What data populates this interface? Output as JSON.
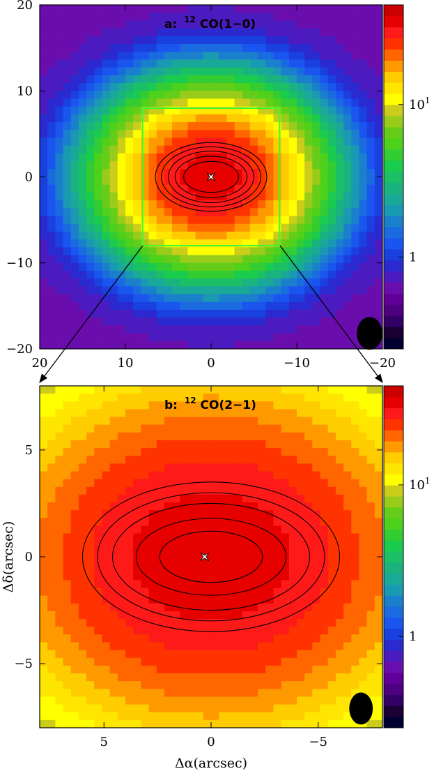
{
  "figure": {
    "ylabel": "Δδ(arcsec)",
    "xlabel": "Δα(arcsec)"
  },
  "chart_data": [
    {
      "type": "heatmap",
      "panel": "a",
      "title_prefix": "a:",
      "title_sup": "12",
      "title_main": "CO(1−0)",
      "xticks": [
        20,
        10,
        0,
        -10,
        -20
      ],
      "yticks": [
        20,
        10,
        0,
        -10,
        -20
      ],
      "xticklabels": [
        "20",
        "10",
        "0",
        "−10",
        "−20"
      ],
      "yticklabels": [
        "20",
        "10",
        "0",
        "−10",
        "−20"
      ],
      "xlim": [
        20,
        -20
      ],
      "ylim": [
        -20,
        20
      ],
      "peak_value": 40,
      "background_value": 0.6,
      "core_size": 6,
      "zoom_box": {
        "x": [
          8,
          -8
        ],
        "y": [
          -8,
          8
        ],
        "color": "#33ff33"
      },
      "contours": [
        {
          "level": 1,
          "rx": 6.5,
          "ry": 4.0
        },
        {
          "level": 2,
          "rx": 5.8,
          "ry": 3.5
        },
        {
          "level": 3,
          "rx": 5.0,
          "ry": 3.0
        },
        {
          "level": 4,
          "rx": 4.2,
          "ry": 2.4
        },
        {
          "level": 5,
          "rx": 3.2,
          "ry": 1.8
        }
      ],
      "star_position": [
        0,
        0
      ],
      "beam": {
        "x": -18.5,
        "y": -18.2,
        "major": 1.9,
        "minor": 1.5
      },
      "colorbar": {
        "scale": "log",
        "tick_values": [
          10,
          1
        ],
        "tick_labels": [
          "10",
          "1"
        ],
        "tick_exponents": [
          "1",
          ""
        ]
      }
    },
    {
      "type": "heatmap",
      "panel": "b",
      "title_prefix": "b:",
      "title_sup": "12",
      "title_main": "CO(2−1)",
      "xticks": [
        5,
        0,
        -5
      ],
      "yticks": [
        5,
        0,
        -5
      ],
      "xticklabels": [
        "5",
        "0",
        "−5"
      ],
      "yticklabels": [
        "5",
        "0",
        "−5"
      ],
      "xlim": [
        8,
        -8
      ],
      "ylim": [
        -8,
        8
      ],
      "peak_value": 40,
      "background_value": 3.5,
      "core_size": 6,
      "contours": [
        {
          "level": 1,
          "rx": 6.0,
          "ry": 3.5
        },
        {
          "level": 2,
          "rx": 5.3,
          "ry": 3.0
        },
        {
          "level": 3,
          "rx": 4.6,
          "ry": 2.5
        },
        {
          "level": 4,
          "rx": 3.5,
          "ry": 1.8
        },
        {
          "level": 5,
          "rx": 2.4,
          "ry": 1.2
        }
      ],
      "star_position": [
        0.3,
        0
      ],
      "beam": {
        "x": -7.0,
        "y": -7.1,
        "major": 0.75,
        "minor": 0.55
      },
      "colorbar": {
        "scale": "log",
        "tick_values": [
          10,
          1
        ],
        "tick_labels": [
          "10",
          "1"
        ],
        "tick_exponents": [
          "1",
          ""
        ]
      }
    }
  ],
  "colormap": [
    "#000033",
    "#1a0033",
    "#330066",
    "#4d0080",
    "#600099",
    "#6a0dad",
    "#4b1bc0",
    "#2a2ad0",
    "#1a40e0",
    "#1a55f0",
    "#1a6be0",
    "#1a80cc",
    "#1a99b3",
    "#1aa899",
    "#1ab380",
    "#1abf66",
    "#1acc4d",
    "#33cc33",
    "#4dd11a",
    "#66cc1a",
    "#99cc1a",
    "#cccc1a",
    "#ffff00",
    "#ffe600",
    "#ffcc00",
    "#ff9900",
    "#ff6600",
    "#ff3300",
    "#ff1a1a",
    "#e60000",
    "#cc0000"
  ]
}
